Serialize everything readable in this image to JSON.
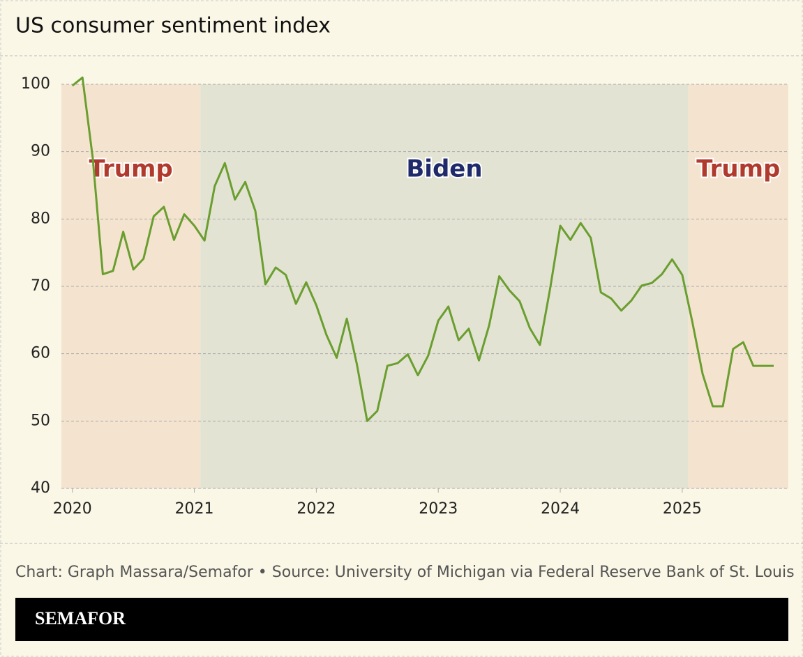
{
  "chart_data": {
    "type": "line",
    "title": "US consumer sentiment index",
    "source": "Chart: Graph Massara/Semafor • Source: University of Michigan via Federal Reserve Bank of St. Louis",
    "brand": "SEMAFOR",
    "x": [
      2020,
      2020.083,
      2020.167,
      2020.25,
      2020.333,
      2020.417,
      2020.5,
      2020.583,
      2020.667,
      2020.75,
      2020.833,
      2020.917,
      2021,
      2021.083,
      2021.167,
      2021.25,
      2021.333,
      2021.417,
      2021.5,
      2021.583,
      2021.667,
      2021.75,
      2021.833,
      2021.917,
      2022,
      2022.083,
      2022.167,
      2022.25,
      2022.333,
      2022.417,
      2022.5,
      2022.583,
      2022.667,
      2022.75,
      2022.833,
      2022.917,
      2023,
      2023.083,
      2023.167,
      2023.25,
      2023.333,
      2023.417,
      2023.5,
      2023.583,
      2023.667,
      2023.75,
      2023.833,
      2023.917,
      2024,
      2024.083,
      2024.167,
      2024.25,
      2024.333,
      2024.417,
      2024.5,
      2024.583,
      2024.667,
      2024.75,
      2024.833,
      2024.917,
      2025,
      2025.083,
      2025.167,
      2025.25,
      2025.333,
      2025.417,
      2025.5,
      2025.583,
      2025.667,
      2025.75
    ],
    "series": [
      {
        "name": "Consumer sentiment",
        "color": "#6a9e2f",
        "values": [
          99.8,
          101.0,
          89.1,
          71.8,
          72.3,
          78.1,
          72.5,
          74.1,
          80.4,
          81.8,
          76.9,
          80.7,
          79.0,
          76.8,
          84.9,
          88.3,
          82.9,
          85.5,
          81.2,
          70.3,
          72.8,
          71.7,
          67.4,
          70.6,
          67.2,
          62.8,
          59.4,
          65.2,
          58.4,
          50.0,
          51.5,
          58.2,
          58.6,
          59.9,
          56.8,
          59.7,
          64.9,
          67.0,
          62.0,
          63.7,
          59.0,
          64.2,
          71.5,
          69.4,
          67.8,
          63.8,
          61.3,
          69.7,
          79.0,
          76.9,
          79.4,
          77.2,
          69.1,
          68.2,
          66.4,
          67.9,
          70.1,
          70.5,
          71.8,
          74.0,
          71.7,
          64.7,
          57.0,
          52.2,
          52.2,
          60.7,
          61.7,
          58.2,
          58.2,
          58.2
        ]
      }
    ],
    "regions": [
      {
        "label": "Trump",
        "start": 2019.91,
        "end": 2021.05,
        "color": "#f4e4cf",
        "label_color": "#b03a2e"
      },
      {
        "label": "Biden",
        "start": 2021.05,
        "end": 2025.05,
        "color": "#e3e3d3",
        "label_color": "#1f2a6b"
      },
      {
        "label": "Trump",
        "start": 2025.05,
        "end": 2025.87,
        "color": "#f4e4cf",
        "label_color": "#b03a2e"
      }
    ],
    "xlim": [
      2019.91,
      2025.87
    ],
    "xticks": [
      2020,
      2021,
      2022,
      2023,
      2024,
      2025
    ],
    "ylim": [
      40,
      100
    ],
    "yticks": [
      40,
      50,
      60,
      70,
      80,
      90,
      100
    ],
    "grid": true
  }
}
